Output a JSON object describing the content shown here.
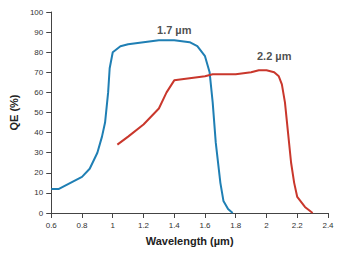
{
  "chart_data": {
    "type": "line",
    "x_label": "Wavelength (µm)",
    "y_label": "QE (%)",
    "xlim": [
      0.6,
      2.4
    ],
    "xticks": [
      0.6,
      0.8,
      1,
      1.2,
      1.4,
      1.6,
      1.8,
      2,
      2.2,
      2.4
    ],
    "ylim": [
      0,
      100
    ],
    "yticks": [
      0,
      10,
      20,
      30,
      40,
      50,
      60,
      70,
      80,
      90,
      100
    ],
    "grid": false,
    "series": [
      {
        "color": "#1f7fb4",
        "x": [
          0.6,
          0.65,
          0.7,
          0.75,
          0.8,
          0.85,
          0.9,
          0.93,
          0.95,
          0.97,
          0.98,
          1.0,
          1.05,
          1.1,
          1.2,
          1.3,
          1.4,
          1.5,
          1.55,
          1.6,
          1.63,
          1.65,
          1.67,
          1.7,
          1.72,
          1.75,
          1.78
        ],
        "values": [
          12,
          12,
          14,
          16,
          18,
          22,
          30,
          38,
          45,
          60,
          72,
          80,
          83,
          84,
          85,
          86,
          86,
          85,
          83,
          78,
          70,
          55,
          35,
          15,
          6,
          2,
          0
        ]
      },
      {
        "color": "#c9372c",
        "x": [
          1.03,
          1.1,
          1.2,
          1.3,
          1.35,
          1.4,
          1.5,
          1.6,
          1.65,
          1.7,
          1.8,
          1.9,
          1.95,
          2.0,
          2.05,
          2.08,
          2.1,
          2.12,
          2.14,
          2.16,
          2.18,
          2.2,
          2.25,
          2.3
        ],
        "values": [
          34,
          38,
          44,
          52,
          60,
          66,
          67,
          68,
          69,
          69,
          69,
          70,
          71,
          71,
          70,
          68,
          64,
          55,
          40,
          25,
          15,
          8,
          3,
          0
        ]
      }
    ],
    "annotations": [
      {
        "text": "1.7 µm",
        "x": 1.4,
        "y": 91
      },
      {
        "text": "2.2 µm",
        "x": 2.05,
        "y": 78
      }
    ]
  }
}
